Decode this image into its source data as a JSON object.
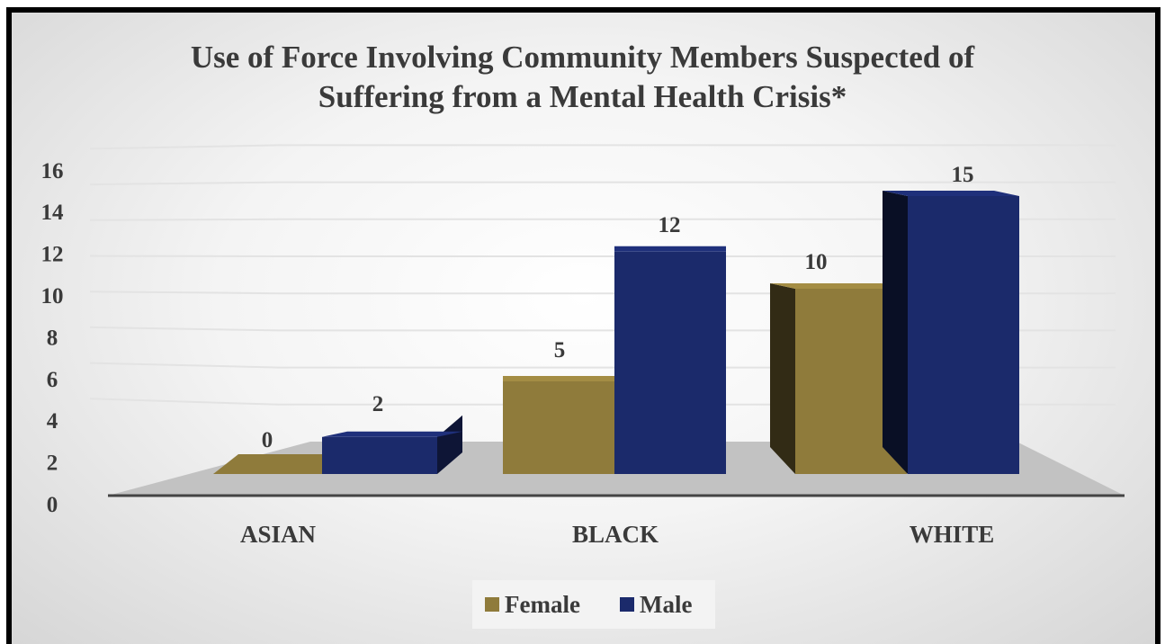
{
  "chart_data": {
    "type": "bar",
    "title": "Use of Force Involving Community Members Suspected of Suffering from a Mental Health Crisis*",
    "title_lines": [
      "Use of Force Involving Community Members Suspected of",
      "Suffering from a Mental Health Crisis*"
    ],
    "categories": [
      "ASIAN",
      "BLACK",
      "WHITE"
    ],
    "series": [
      {
        "name": "Female",
        "values": [
          0,
          5,
          10
        ],
        "color": "#8f7b3b"
      },
      {
        "name": "Male",
        "values": [
          2,
          12,
          15
        ],
        "color": "#1b2a6b"
      }
    ],
    "ylim": [
      0,
      16
    ],
    "yticks": [
      "0",
      "2",
      "4",
      "6",
      "8",
      "10",
      "12",
      "14",
      "16"
    ],
    "data_labels": [
      [
        "0",
        "5",
        "10"
      ],
      [
        "2",
        "12",
        "15"
      ]
    ],
    "legend_position": "bottom",
    "grid": true,
    "style": "3d"
  }
}
